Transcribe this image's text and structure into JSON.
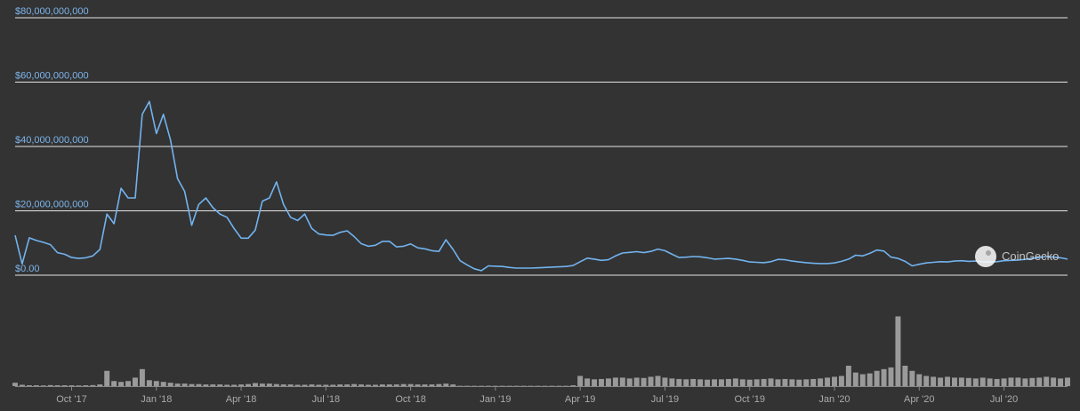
{
  "chart_data": {
    "type": "line",
    "watermark": "CoinGecko",
    "categories": [
      null,
      null,
      null,
      null,
      null,
      null,
      null,
      null,
      "Oct '17",
      null,
      null,
      null,
      null,
      null,
      null,
      null,
      null,
      null,
      null,
      null,
      "Jan '18",
      null,
      null,
      null,
      null,
      null,
      null,
      null,
      null,
      null,
      null,
      null,
      "Apr '18",
      null,
      null,
      null,
      null,
      null,
      null,
      null,
      null,
      null,
      null,
      null,
      "Jul '18",
      null,
      null,
      null,
      null,
      null,
      null,
      null,
      null,
      null,
      null,
      null,
      "Oct '18",
      null,
      null,
      null,
      null,
      null,
      null,
      null,
      null,
      null,
      null,
      null,
      "Jan '19",
      null,
      null,
      null,
      null,
      null,
      null,
      null,
      null,
      null,
      null,
      null,
      "Apr '19",
      null,
      null,
      null,
      null,
      null,
      null,
      null,
      null,
      null,
      null,
      null,
      "Jul '19",
      null,
      null,
      null,
      null,
      null,
      null,
      null,
      null,
      null,
      null,
      null,
      "Oct '19",
      null,
      null,
      null,
      null,
      null,
      null,
      null,
      null,
      null,
      null,
      null,
      "Jan '20",
      null,
      null,
      null,
      null,
      null,
      null,
      null,
      null,
      null,
      null,
      null,
      "Apr '20",
      null,
      null,
      null,
      null,
      null,
      null,
      null,
      null,
      null,
      null,
      null,
      "Jul '20",
      null,
      null,
      null,
      null,
      null,
      null,
      null,
      null,
      null
    ],
    "ylim": [
      0,
      80000000000
    ],
    "yticks": [
      {
        "value": 0,
        "label": "$0.00"
      },
      {
        "value": 20000000000,
        "label": "$20,000,000,000"
      },
      {
        "value": 40000000000,
        "label": "$40,000,000,000"
      },
      {
        "value": 60000000000,
        "label": "$60,000,000,000"
      },
      {
        "value": 80000000000,
        "label": "$80,000,000,000"
      }
    ],
    "y2lim": [
      0,
      6000000000
    ],
    "grid": true,
    "series": [
      {
        "type": "line",
        "color": "#72b3ee",
        "values": [
          12400000000.0,
          3500000000.0,
          11600000000.0,
          10800000000.0,
          10200000000.0,
          9500000000.0,
          7000000000.0,
          6500000000.0,
          5500000000.0,
          5200000000.0,
          5400000000.0,
          6000000000.0,
          8000000000.0,
          19000000000.0,
          16000000000.0,
          27000000000.0,
          24000000000.0,
          24000000000.0,
          50000000000.0,
          54000000000.0,
          44000000000.0,
          50000000000.0,
          42000000000.0,
          30000000000.0,
          26000000000.0,
          15500000000.0,
          22000000000.0,
          24000000000.0,
          21000000000.0,
          19000000000.0,
          18000000000.0,
          14500000000.0,
          11500000000.0,
          11500000000.0,
          14000000000.0,
          23000000000.0,
          24000000000.0,
          29000000000.0,
          22000000000.0,
          18000000000.0,
          17000000000.0,
          19000000000.0,
          14500000000.0,
          12800000000.0,
          12500000000.0,
          12400000000.0,
          13300000000.0,
          13800000000.0,
          12000000000.0,
          9800000000.0,
          9000000000.0,
          9300000000.0,
          10500000000.0,
          10500000000.0,
          8800000000.0,
          9000000000.0,
          9700000000.0,
          8500000000.0,
          8200000000.0,
          7600000000.0,
          7400000000.0,
          11000000000.0,
          8000000000.0,
          4500000000.0,
          3200000000.0,
          2000000000.0,
          1400000000.0,
          2900000000.0,
          2800000000.0,
          2700000000.0,
          2400000000.0,
          2200000000.0,
          2200000000.0,
          2200000000.0,
          2300000000.0,
          2400000000.0,
          2500000000.0,
          2600000000.0,
          2700000000.0,
          3000000000.0,
          4200000000.0,
          5300000000.0,
          5000000000.0,
          4600000000.0,
          4800000000.0,
          6000000000.0,
          6900000000.0,
          7100000000.0,
          7300000000.0,
          7000000000.0,
          7400000000.0,
          8100000000.0,
          7600000000.0,
          6500000000.0,
          5500000000.0,
          5600000000.0,
          5800000000.0,
          5700000000.0,
          5400000000.0,
          5000000000.0,
          5100000000.0,
          5200000000.0,
          5000000000.0,
          4600000000.0,
          4100000000.0,
          4000000000.0,
          3900000000.0,
          4200000000.0,
          4900000000.0,
          4800000000.0,
          4400000000.0,
          4100000000.0,
          3900000000.0,
          3700000000.0,
          3600000000.0,
          3600000000.0,
          3800000000.0,
          4300000000.0,
          5000000000.0,
          6200000000.0,
          6000000000.0,
          6800000000.0,
          7800000000.0,
          7500000000.0,
          5600000000.0,
          5200000000.0,
          4300000000.0,
          2900000000.0,
          3400000000.0,
          3800000000.0,
          4000000000.0,
          4200000000.0,
          4100000000.0,
          4400000000.0,
          4500000000.0,
          4300000000.0,
          4400000000.0,
          4200000000.0,
          4100000000.0,
          4200000000.0,
          4500000000.0,
          4600000000.0,
          4700000000.0,
          4900000000.0,
          5200000000.0,
          5500000000.0,
          5800000000.0,
          5600000000.0,
          5400000000.0,
          5000000000.0
        ]
      },
      {
        "type": "bar",
        "axis": "y2",
        "color": "#9a9a9a",
        "values": [
          200000000.0,
          80000000.0,
          50000000.0,
          50000000.0,
          40000000.0,
          60000000.0,
          50000000.0,
          50000000.0,
          50000000.0,
          40000000.0,
          50000000.0,
          60000000.0,
          100000000.0,
          900000000.0,
          300000000.0,
          250000000.0,
          300000000.0,
          500000000.0,
          1000000000.0,
          350000000.0,
          300000000.0,
          250000000.0,
          200000000.0,
          150000000.0,
          150000000.0,
          120000000.0,
          120000000.0,
          100000000.0,
          100000000.0,
          100000000.0,
          80000000.0,
          80000000.0,
          100000000.0,
          120000000.0,
          180000000.0,
          150000000.0,
          150000000.0,
          120000000.0,
          100000000.0,
          100000000.0,
          80000000.0,
          80000000.0,
          100000000.0,
          80000000.0,
          80000000.0,
          80000000.0,
          100000000.0,
          100000000.0,
          120000000.0,
          100000000.0,
          80000000.0,
          80000000.0,
          100000000.0,
          100000000.0,
          100000000.0,
          120000000.0,
          120000000.0,
          100000000.0,
          100000000.0,
          100000000.0,
          120000000.0,
          150000000.0,
          100000000.0,
          20000000.0,
          20000000.0,
          20000000.0,
          20000000.0,
          20000000.0,
          20000000.0,
          20000000.0,
          20000000.0,
          20000000.0,
          20000000.0,
          20000000.0,
          20000000.0,
          20000000.0,
          20000000.0,
          20000000.0,
          20000000.0,
          50000000.0,
          600000000.0,
          450000000.0,
          400000000.0,
          420000000.0,
          450000000.0,
          500000000.0,
          500000000.0,
          450000000.0,
          500000000.0,
          480000000.0,
          550000000.0,
          600000000.0,
          500000000.0,
          450000000.0,
          420000000.0,
          400000000.0,
          420000000.0,
          400000000.0,
          380000000.0,
          400000000.0,
          400000000.0,
          420000000.0,
          450000000.0,
          400000000.0,
          380000000.0,
          400000000.0,
          420000000.0,
          450000000.0,
          400000000.0,
          420000000.0,
          400000000.0,
          380000000.0,
          400000000.0,
          420000000.0,
          450000000.0,
          500000000.0,
          550000000.0,
          600000000.0,
          1200000000.0,
          800000000.0,
          700000000.0,
          750000000.0,
          900000000.0,
          1000000000.0,
          1100000000.0,
          4100000000.0,
          1200000000.0,
          900000000.0,
          700000000.0,
          600000000.0,
          550000000.0,
          500000000.0,
          550000000.0,
          500000000.0,
          500000000.0,
          480000000.0,
          450000000.0,
          500000000.0,
          450000000.0,
          420000000.0,
          450000000.0,
          500000000.0,
          500000000.0,
          450000000.0,
          480000000.0,
          500000000.0,
          550000000.0,
          500000000.0,
          450000000.0,
          500000000.0
        ]
      }
    ]
  }
}
